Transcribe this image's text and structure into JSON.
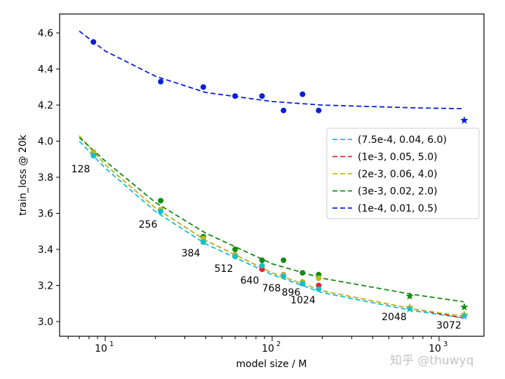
{
  "chart_data": {
    "type": "scatter",
    "xlabel": "model size / M",
    "ylabel": "train_loss @ 20k",
    "xscale": "log",
    "xlim": [
      5.5,
      1800
    ],
    "ylim": [
      2.95,
      4.65
    ],
    "xticks": [
      {
        "value": 10,
        "label": "10",
        "exp": "1"
      },
      {
        "value": 100,
        "label": "10",
        "exp": "2"
      },
      {
        "value": 1000,
        "label": "10",
        "exp": "3"
      }
    ],
    "yticks": [
      "3.0",
      "3.2",
      "3.4",
      "3.6",
      "3.8",
      "4.0",
      "4.2",
      "4.4",
      "4.6"
    ],
    "grid": false,
    "legend_position": "center-right",
    "x": [
      8.5,
      21.5,
      38.7,
      60,
      87,
      117,
      152,
      190,
      667,
      1415
    ],
    "star_points_from_index": 8,
    "annotations": [
      "128",
      "256",
      "384",
      "512",
      "640",
      "768",
      "896",
      "1024",
      "2048",
      "3072"
    ],
    "series": [
      {
        "name": "(7.5e-4, 0.04, 6.0)",
        "color": "#17becf",
        "values": [
          3.92,
          3.61,
          3.44,
          3.36,
          3.31,
          3.25,
          3.21,
          3.18,
          3.07,
          3.03
        ],
        "fit": {
          "x": [
            7,
            10,
            20,
            40,
            100,
            200,
            700,
            1400
          ],
          "y": [
            4.0,
            3.85,
            3.61,
            3.43,
            3.26,
            3.16,
            3.06,
            3.02
          ]
        }
      },
      {
        "name": "(1e-3, 0.05, 5.0)",
        "color": "#d62728",
        "values": [
          3.93,
          3.62,
          3.46,
          3.37,
          3.29,
          3.26,
          3.22,
          3.2,
          3.07,
          3.03
        ],
        "fit": {
          "x": [
            7,
            10,
            20,
            40,
            100,
            200,
            700,
            1400
          ],
          "y": [
            4.03,
            3.87,
            3.63,
            3.45,
            3.27,
            3.17,
            3.07,
            3.02
          ]
        }
      },
      {
        "name": "(2e-3, 0.06, 4.0)",
        "color": "#bcbd22",
        "values": [
          3.94,
          3.62,
          3.46,
          3.37,
          3.31,
          3.26,
          3.22,
          3.24,
          3.08,
          3.04
        ],
        "fit": {
          "x": [
            7,
            10,
            20,
            40,
            100,
            200,
            700,
            1400
          ],
          "y": [
            4.03,
            3.87,
            3.63,
            3.45,
            3.27,
            3.17,
            3.07,
            3.03
          ]
        }
      },
      {
        "name": "(3e-3, 0.02, 2.0)",
        "color": "#138a13",
        "values": [
          3.94,
          3.67,
          3.47,
          3.4,
          3.34,
          3.34,
          3.27,
          3.26,
          3.14,
          3.08
        ],
        "fit": {
          "x": [
            7,
            10,
            20,
            40,
            100,
            200,
            700,
            1400
          ],
          "y": [
            4.02,
            3.89,
            3.66,
            3.49,
            3.32,
            3.24,
            3.15,
            3.11
          ]
        }
      },
      {
        "name": "(1e-4, 0.01, 0.5)",
        "color": "#0a1fd6",
        "values": [
          4.55,
          4.33,
          4.3,
          4.25,
          4.25,
          4.17,
          4.26,
          4.17,
          null,
          4.115
        ],
        "fit": {
          "x": [
            7,
            10,
            20,
            40,
            100,
            200,
            700,
            1400
          ],
          "y": [
            4.61,
            4.5,
            4.36,
            4.27,
            4.22,
            4.2,
            4.185,
            4.18
          ]
        }
      }
    ]
  },
  "watermark": "知乎 @thuwyq"
}
